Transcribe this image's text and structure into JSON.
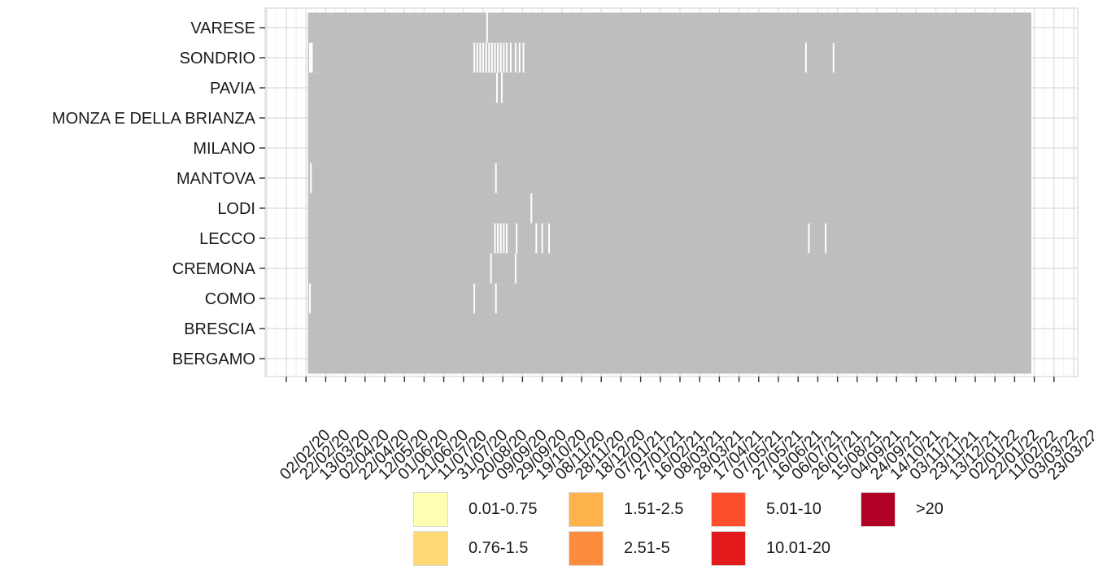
{
  "chart_data": {
    "type": "heatmap",
    "title": "",
    "xlabel": "",
    "ylabel": "",
    "grid": true,
    "rows": [
      "VARESE",
      "SONDRIO",
      "PAVIA",
      "MONZA E DELLA BRIANZA",
      "MILANO",
      "MANTOVA",
      "LODI",
      "LECCO",
      "CREMONA",
      "COMO",
      "BRESCIA",
      "BERGAMO"
    ],
    "x_ticks": [
      "02/02/20",
      "22/02/20",
      "13/03/20",
      "02/04/20",
      "22/04/20",
      "12/05/20",
      "01/06/20",
      "21/06/20",
      "11/07/20",
      "31/07/20",
      "20/08/20",
      "09/09/20",
      "29/09/20",
      "19/10/20",
      "08/11/20",
      "28/11/20",
      "18/12/20",
      "07/01/21",
      "27/01/21",
      "16/02/21",
      "08/03/21",
      "28/03/21",
      "17/04/21",
      "07/05/21",
      "27/05/21",
      "16/06/21",
      "06/07/21",
      "26/07/21",
      "15/08/21",
      "04/09/21",
      "24/09/21",
      "14/10/21",
      "03/11/21",
      "23/11/21",
      "13/12/21",
      "02/01/22",
      "22/01/22",
      "11/02/22",
      "03/03/22",
      "23/03/22"
    ],
    "date_range": [
      "2020-02-24",
      "2022-02-28"
    ],
    "cell_color_shown": "#bebebe",
    "gaps": {
      "VARESE": [
        "2020-08-24"
      ],
      "SONDRIO": [
        "2020-02-26",
        "2020-02-27",
        "2020-02-28",
        "2020-08-11",
        "2020-08-14",
        "2020-08-17",
        "2020-08-20",
        "2020-08-23",
        "2020-08-26",
        "2020-08-29",
        "2020-09-01",
        "2020-09-04",
        "2020-09-07",
        "2020-09-10",
        "2020-09-13",
        "2020-09-17",
        "2020-09-22",
        "2020-09-26",
        "2020-09-30",
        "2021-07-14",
        "2021-08-11"
      ],
      "PAVIA": [
        "2020-09-03",
        "2020-09-08"
      ],
      "MONZA E DELLA BRIANZA": [],
      "MILANO": [],
      "MANTOVA": [
        "2020-02-27",
        "2020-09-02"
      ],
      "LODI": [
        "2020-10-08"
      ],
      "LECCO": [
        "2020-09-01",
        "2020-09-04",
        "2020-09-07",
        "2020-09-10",
        "2020-09-13",
        "2020-09-23",
        "2020-10-13",
        "2020-10-19",
        "2020-10-26",
        "2021-07-17",
        "2021-08-03"
      ],
      "CREMONA": [
        "2020-08-28",
        "2020-09-22"
      ],
      "COMO": [
        "2020-02-26",
        "2020-08-11",
        "2020-09-02"
      ],
      "BRESCIA": [],
      "BERGAMO": []
    },
    "legend": [
      {
        "label": "0.01-0.75",
        "color": "#ffffb2"
      },
      {
        "label": "0.76-1.5",
        "color": "#fed976"
      },
      {
        "label": "1.51-2.5",
        "color": "#feb24c"
      },
      {
        "label": "2.51-5",
        "color": "#fd8d3c"
      },
      {
        "label": "5.01-10",
        "color": "#fc4e2a"
      },
      {
        "label": "10.01-20",
        "color": "#e31a1c"
      },
      {
        "label": ">20",
        "color": "#b10026"
      }
    ]
  }
}
